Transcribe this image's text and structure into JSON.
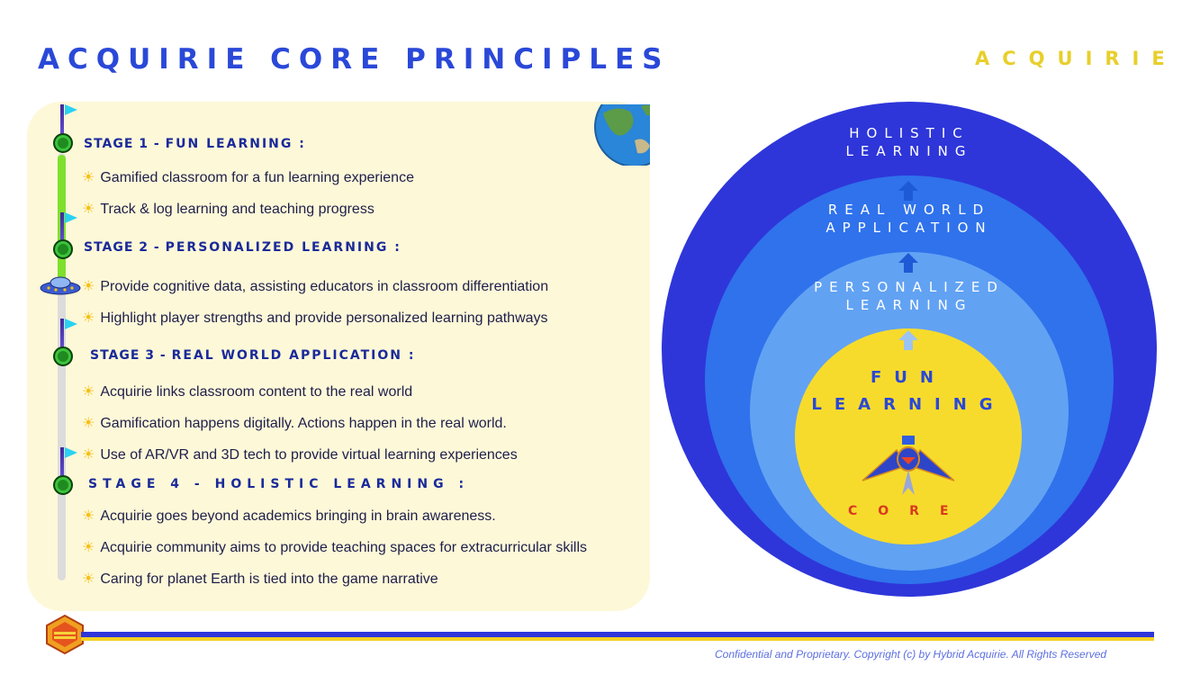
{
  "header": {
    "title": "ACQUIRIE CORE PRINCIPLES",
    "brand": "ACQUIRIE"
  },
  "stages": [
    {
      "prefix": "STAGE 1 - ",
      "name": "FUN LEARNING :",
      "bullets": [
        "Gamified classroom for a fun learning experience",
        "Track & log learning and teaching progress"
      ]
    },
    {
      "prefix": "STAGE 2 - ",
      "name": "PERSONALIZED LEARNING :",
      "bullets": [
        "Provide cognitive data, assisting educators in classroom differentiation",
        "Highlight player strengths and provide personalized learning pathways"
      ]
    },
    {
      "prefix": "STAGE 3 - ",
      "name": "REAL WORLD APPLICATION :",
      "bullets": [
        "Acquirie links classroom content to the real world",
        "Gamification happens digitally. Actions happen in the real world.",
        "Use of AR/VR and 3D tech to provide virtual learning experiences"
      ]
    },
    {
      "prefix": "STAGE 4 - ",
      "name": "HOLISTIC LEARNING :",
      "bullets": [
        "Acquirie goes beyond academics bringing in brain awareness.",
        "Acquirie community aims to provide teaching spaces for extracurricular skills",
        "Caring for planet Earth is tied into the game narrative"
      ]
    }
  ],
  "diagram": {
    "holistic": [
      "HOLISTIC",
      "LEARNING"
    ],
    "real_world": [
      "REAL WORLD",
      "APPLICATION"
    ],
    "personalized": [
      "PERSONALIZED",
      "LEARNING"
    ],
    "fun": [
      "FUN",
      "LEARNING"
    ],
    "core": "CORE"
  },
  "footer": {
    "copyright": "Confidential and Proprietary. Copyright (c) by Hybrid Acquirie. All Rights Reserved"
  },
  "icons": {
    "bullet": "sun-icon",
    "node": "gem-node-icon",
    "flag": "flag-icon",
    "globe": "globe-icon",
    "ufo": "ufo-icon",
    "logo": "bird-logo-icon",
    "hex": "hexagon-logo-icon"
  },
  "colors": {
    "title": "#2a48d8",
    "brand": "#e8cf2a",
    "outer_circle": "#2e36d9",
    "second_circle": "#2f72ec",
    "third_circle": "#62a2f3",
    "core_circle": "#f7db2c",
    "core_text": "#d83a1e"
  }
}
